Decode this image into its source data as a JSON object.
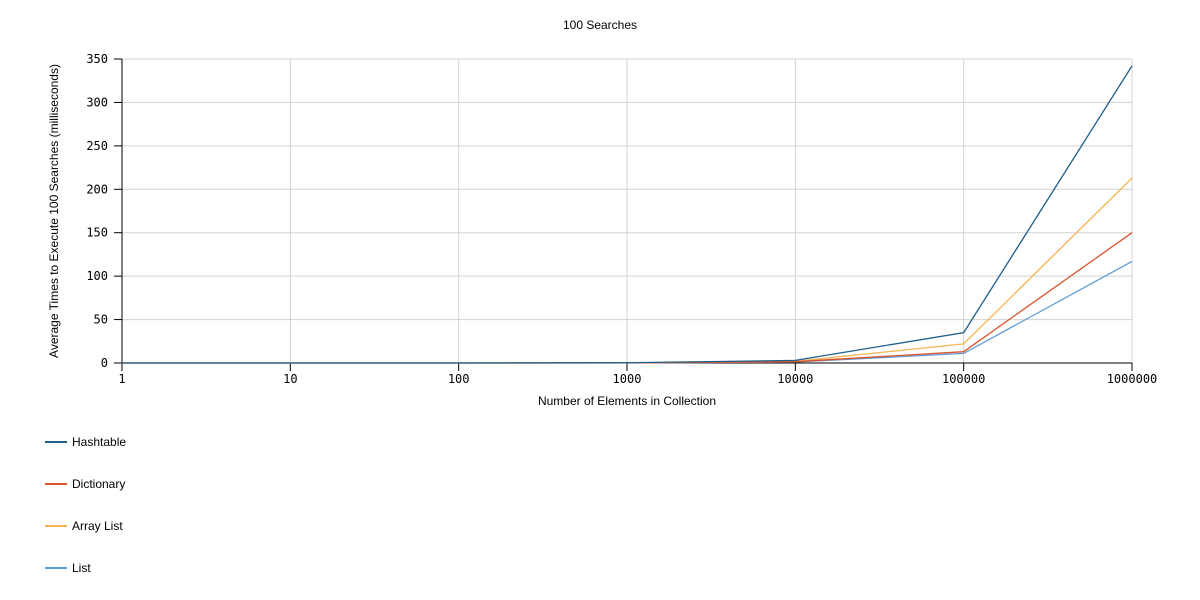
{
  "chart_data": {
    "type": "line",
    "title": "100 Searches",
    "xlabel": "Number of Elements in Collection",
    "ylabel": "Average Times to Execute 100 Searches (milliseconds)",
    "x_scale": "log",
    "x": [
      1,
      10,
      100,
      1000,
      10000,
      100000,
      1000000
    ],
    "x_tick_labels": [
      "1",
      "10",
      "100",
      "1000",
      "10000",
      "100000",
      "1000000"
    ],
    "ylim": [
      0,
      350
    ],
    "y_ticks": [
      0,
      50,
      100,
      150,
      200,
      250,
      300,
      350
    ],
    "grid": true,
    "legend_position": "bottom-left",
    "series": [
      {
        "name": "Hashtable",
        "color": "#1f5f8b",
        "values": [
          0,
          0,
          0,
          0.3,
          3,
          35,
          342
        ]
      },
      {
        "name": "Dictionary",
        "color": "#d9532c",
        "values": [
          0,
          0,
          0,
          0.1,
          1.5,
          13,
          150
        ]
      },
      {
        "name": "Array List",
        "color": "#f5b450",
        "values": [
          0,
          0,
          0,
          0.2,
          2,
          22,
          213
        ]
      },
      {
        "name": "List",
        "color": "#5b9bd5",
        "values": [
          0,
          0,
          0,
          0.1,
          1.2,
          11,
          117
        ]
      }
    ]
  }
}
